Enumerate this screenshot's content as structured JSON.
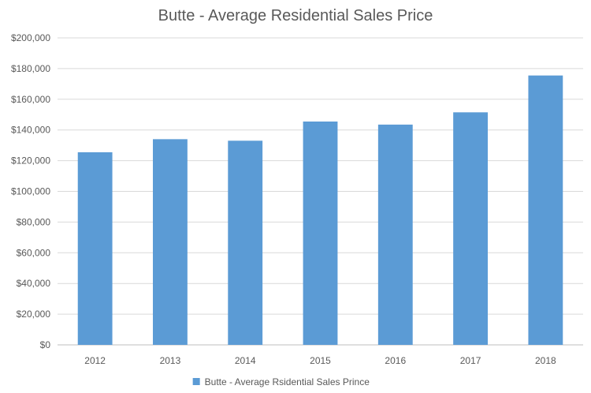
{
  "chart_data": {
    "type": "bar",
    "title": "Butte - Average Residential Sales Price",
    "categories": [
      "2012",
      "2013",
      "2014",
      "2015",
      "2016",
      "2017",
      "2018"
    ],
    "series": [
      {
        "name": "Butte - Average Rsidential Sales Prince",
        "values": [
          125500,
          134000,
          133000,
          145500,
          143500,
          151500,
          175500
        ],
        "color": "#5b9bd5"
      }
    ],
    "ylim": [
      0,
      200000
    ],
    "yticks": [
      "$0",
      "$20,000",
      "$40,000",
      "$60,000",
      "$80,000",
      "$100,000",
      "$120,000",
      "$140,000",
      "$160,000",
      "$180,000",
      "$200,000"
    ],
    "grid": true,
    "legend_position": "bottom",
    "xlabel": "",
    "ylabel": ""
  }
}
